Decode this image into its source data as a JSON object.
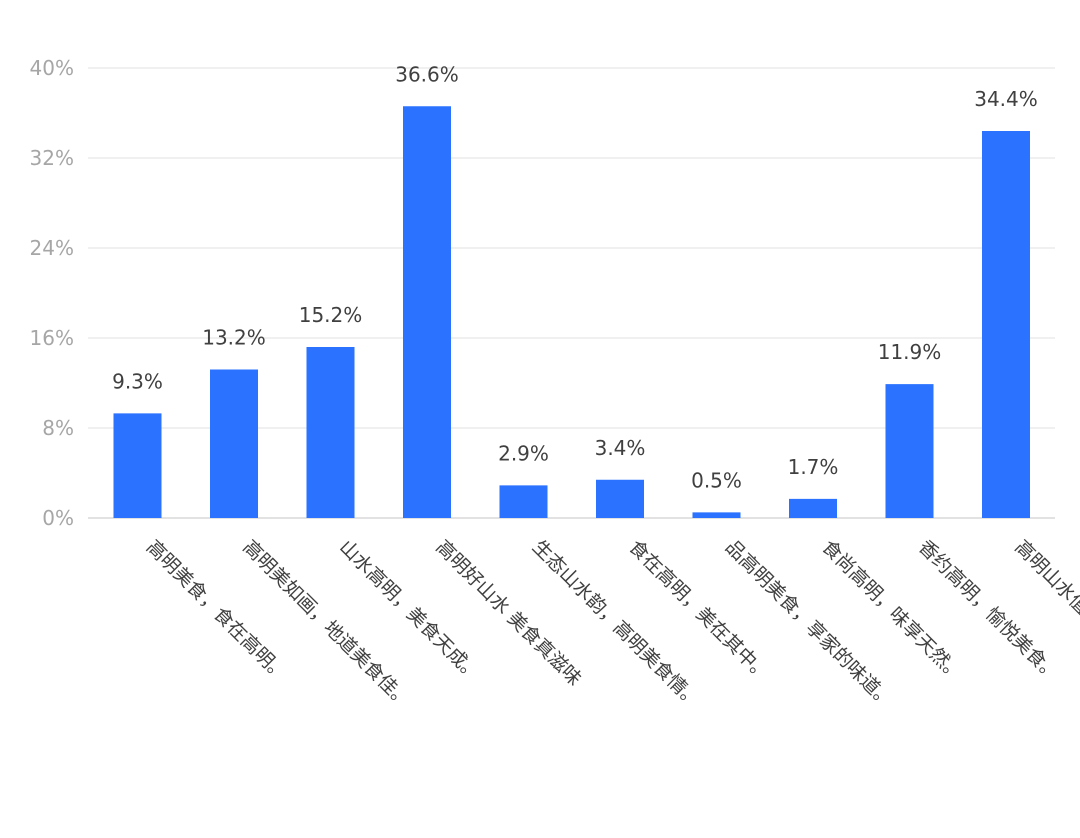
{
  "chart_data": {
    "type": "bar",
    "categories": [
      "高明美食，食在高明。",
      "高明美如画，地道美食佳。",
      "山水高明，美食天成。",
      "高明好山水 美食真滋味",
      "生态山水韵，高明美食情。",
      "食在高明，美在其中。",
      "品高明美食，享家的味道。",
      "食尚高明，味享天然。",
      "香约高明，愉悦美食。",
      "高明山水值"
    ],
    "values": [
      9.3,
      13.2,
      15.2,
      36.6,
      2.9,
      3.4,
      0.5,
      1.7,
      11.9,
      34.4
    ],
    "data_labels": [
      "9.3%",
      "13.2%",
      "15.2%",
      "36.6%",
      "2.9%",
      "3.4%",
      "0.5%",
      "1.7%",
      "11.9%",
      "34.4%"
    ],
    "y_ticks": [
      0,
      8,
      16,
      24,
      32,
      40
    ],
    "y_tick_labels": [
      "0%",
      "8%",
      "16%",
      "24%",
      "32%",
      "40%"
    ],
    "ylim": [
      0,
      40
    ],
    "grid": true,
    "legend": "none",
    "colors": {
      "bar": "#2a72ff"
    }
  }
}
